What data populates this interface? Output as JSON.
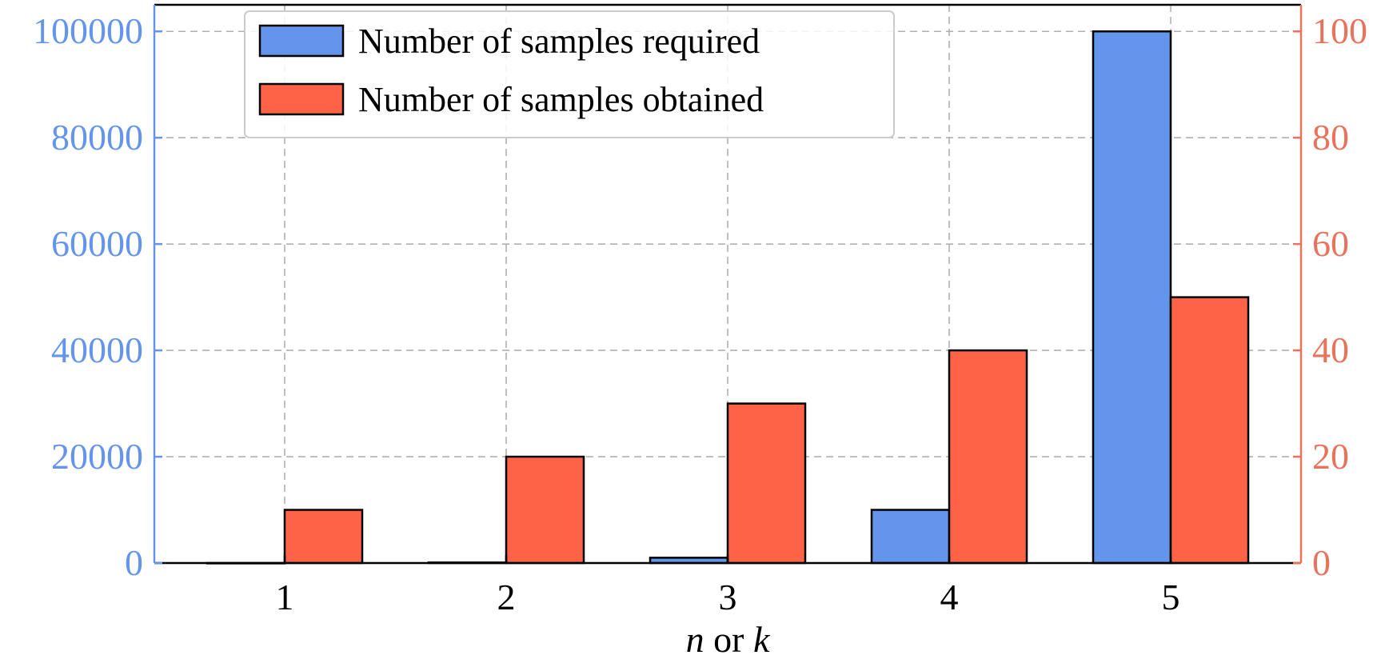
{
  "chart_data": {
    "type": "bar",
    "categories": [
      "1",
      "2",
      "3",
      "4",
      "5"
    ],
    "series": [
      {
        "name": "Number of samples required",
        "axis": "left",
        "color": "#6495ED",
        "values": [
          10,
          100,
          1000,
          10000,
          100000
        ]
      },
      {
        "name": "Number of samples obtained",
        "axis": "right",
        "color": "#FF6347",
        "values": [
          10,
          20,
          30,
          40,
          50
        ]
      }
    ],
    "xlabel_var1": "n",
    "xlabel_mid": " or ",
    "xlabel_var2": "k",
    "ylim_left": [
      0,
      105000
    ],
    "ylim_right": [
      0,
      105
    ],
    "yticks_left": [
      "0",
      "20000",
      "40000",
      "60000",
      "80000",
      "100000"
    ],
    "yticks_right": [
      "0",
      "20",
      "40",
      "60",
      "80",
      "100"
    ],
    "left_axis_color": "#6495ED",
    "right_axis_color": "#E8735A",
    "grid": true,
    "legend_position": "top-left"
  }
}
